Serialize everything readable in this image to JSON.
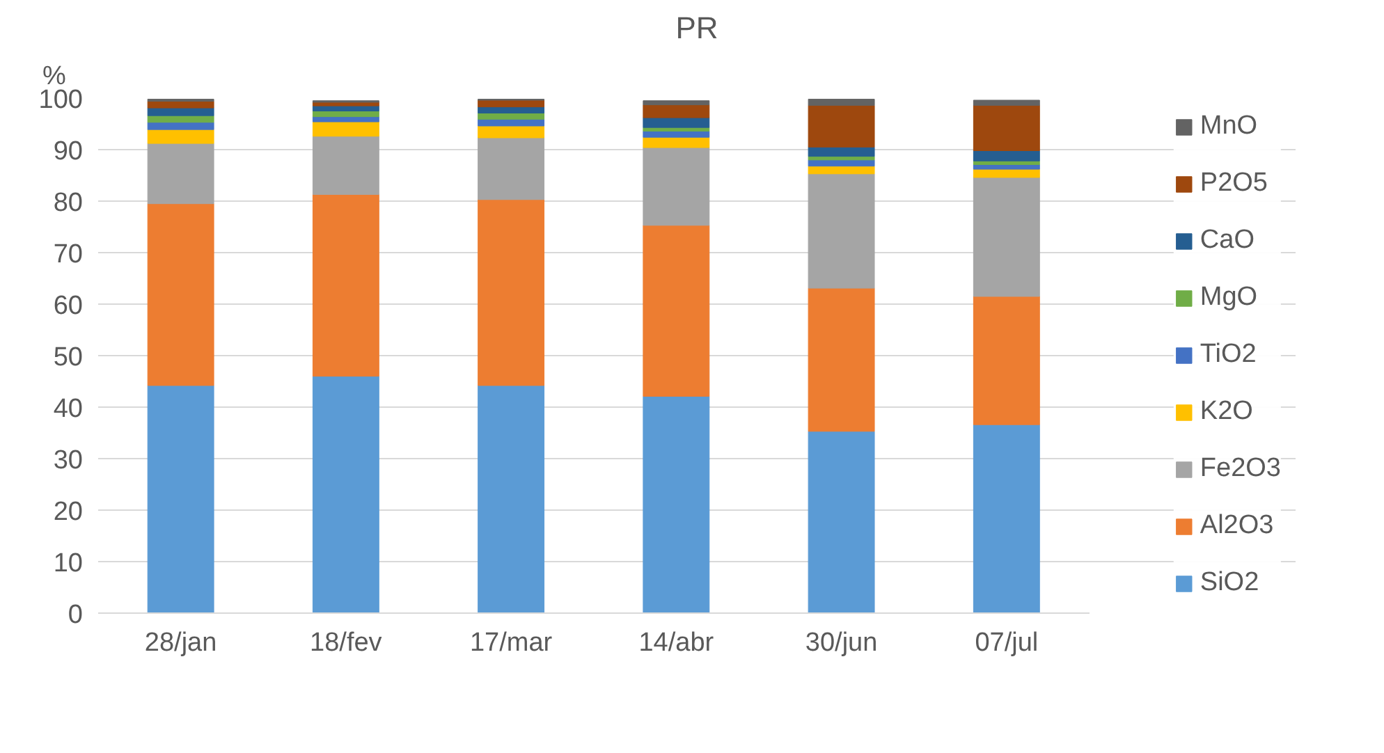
{
  "chart_data": {
    "type": "bar",
    "title": "PR",
    "ylabel": "%",
    "stacked": true,
    "categories": [
      "28/jan",
      "18/fev",
      "17/mar",
      "14/abr",
      "30/jun",
      "07/jul"
    ],
    "series": [
      {
        "name": "SiO2",
        "color": "#5b9bd5",
        "values": [
          44.2,
          46.0,
          44.2,
          42.1,
          35.3,
          36.6
        ]
      },
      {
        "name": "Al2O3",
        "color": "#ed7d31",
        "values": [
          35.3,
          35.3,
          36.1,
          33.2,
          27.8,
          24.9
        ]
      },
      {
        "name": "Fe2O3",
        "color": "#a5a5a5",
        "values": [
          11.7,
          11.3,
          12.0,
          15.1,
          22.2,
          23.1
        ]
      },
      {
        "name": "K2O",
        "color": "#ffc000",
        "values": [
          2.7,
          2.8,
          2.3,
          2.0,
          1.5,
          1.6
        ]
      },
      {
        "name": "TiO2",
        "color": "#4472c4",
        "values": [
          1.4,
          1.0,
          1.3,
          1.2,
          1.2,
          0.9
        ]
      },
      {
        "name": "MgO",
        "color": "#70ad47",
        "values": [
          1.3,
          1.1,
          1.2,
          0.7,
          0.7,
          0.7
        ]
      },
      {
        "name": "CaO",
        "color": "#255e91",
        "values": [
          1.5,
          1.0,
          1.2,
          1.9,
          1.8,
          2.0
        ]
      },
      {
        "name": "P2O5",
        "color": "#9e480e",
        "values": [
          1.3,
          0.7,
          1.3,
          2.5,
          8.1,
          8.8
        ]
      },
      {
        "name": "MnO",
        "color": "#636363",
        "values": [
          0.4,
          0.3,
          0.2,
          0.8,
          1.2,
          1.0
        ]
      }
    ],
    "ylim": [
      0,
      100
    ],
    "yticks": [
      0,
      10,
      20,
      30,
      40,
      50,
      60,
      70,
      80,
      90,
      100
    ],
    "grid": "y",
    "legend": "right"
  }
}
